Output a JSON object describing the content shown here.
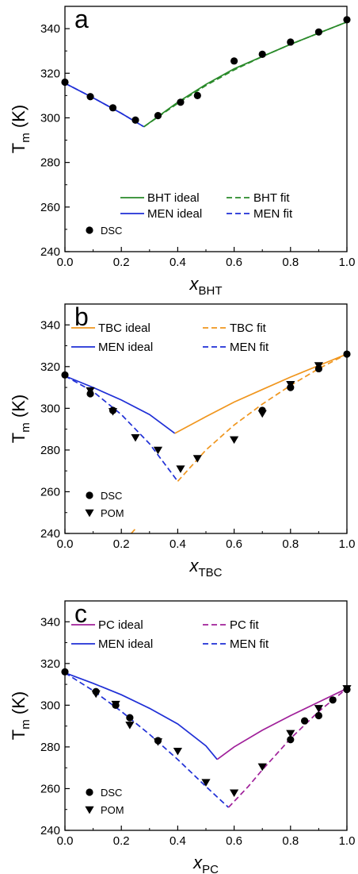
{
  "chart_data": [
    {
      "type": "line",
      "panel_label": "a",
      "xlabel_main": "x",
      "xlabel_sub": "BHT",
      "ylabel_main": "T",
      "ylabel_sub": "m",
      "ylabel_unit": "(K)",
      "xlim": [
        0,
        1.0
      ],
      "ylim": [
        240,
        350
      ],
      "xticks": [
        "0.0",
        "0.2",
        "0.4",
        "0.6",
        "0.8",
        "1.0"
      ],
      "yticks": [
        "240",
        "260",
        "280",
        "300",
        "320",
        "340"
      ],
      "legend_lines": [
        {
          "label": "BHT ideal",
          "color": "#2a8a2a",
          "dash": false
        },
        {
          "label": "BHT fit",
          "color": "#2a8a2a",
          "dash": true
        },
        {
          "label": "MEN ideal",
          "color": "#1f2fd6",
          "dash": false
        },
        {
          "label": "MEN fit",
          "color": "#1f2fd6",
          "dash": true
        }
      ],
      "legend_markers": [
        {
          "label": "DSC",
          "marker": "circle"
        }
      ],
      "series": [
        {
          "name": "MEN ideal",
          "color": "#1f2fd6",
          "dash": false,
          "x": [
            0,
            0.1,
            0.2,
            0.28
          ],
          "y": [
            315.5,
            309,
            302,
            296
          ]
        },
        {
          "name": "MEN fit",
          "color": "#1f2fd6",
          "dash": true,
          "x": [
            0,
            0.1,
            0.2,
            0.28
          ],
          "y": [
            315.5,
            309,
            302,
            296
          ]
        },
        {
          "name": "BHT ideal",
          "color": "#2a8a2a",
          "dash": false,
          "x": [
            0.28,
            0.4,
            0.5,
            0.6,
            0.7,
            0.8,
            0.9,
            1.0
          ],
          "y": [
            296,
            307,
            315,
            322,
            327.5,
            333,
            338,
            343
          ]
        },
        {
          "name": "BHT fit",
          "color": "#2a8a2a",
          "dash": true,
          "x": [
            0.28,
            0.4,
            0.5,
            0.6,
            0.7,
            0.8,
            0.9,
            1.0
          ],
          "y": [
            296,
            306.5,
            314.5,
            321.5,
            327.5,
            333,
            338,
            343
          ]
        }
      ],
      "points": [
        {
          "name": "DSC",
          "marker": "circle",
          "x": [
            0,
            0.09,
            0.17,
            0.25,
            0.33,
            0.41,
            0.47,
            0.6,
            0.7,
            0.8,
            0.9,
            1.0
          ],
          "y": [
            316,
            309.5,
            304.5,
            299,
            301,
            307,
            310,
            325.5,
            328.5,
            334,
            338.5,
            344
          ]
        }
      ]
    },
    {
      "type": "line",
      "panel_label": "b",
      "xlabel_main": "x",
      "xlabel_sub": "TBC",
      "ylabel_main": "T",
      "ylabel_sub": "m",
      "ylabel_unit": "(K)",
      "xlim": [
        0,
        1.0
      ],
      "ylim": [
        240,
        350
      ],
      "xticks": [
        "0.0",
        "0.2",
        "0.4",
        "0.6",
        "0.8",
        "1.0"
      ],
      "yticks": [
        "240",
        "260",
        "280",
        "300",
        "320",
        "340"
      ],
      "legend_lines": [
        {
          "label": "TBC ideal",
          "color": "#f0961e",
          "dash": false
        },
        {
          "label": "TBC fit",
          "color": "#f0961e",
          "dash": true
        },
        {
          "label": "MEN ideal",
          "color": "#1f2fd6",
          "dash": false
        },
        {
          "label": "MEN fit",
          "color": "#1f2fd6",
          "dash": true
        }
      ],
      "legend_markers": [
        {
          "label": "DSC",
          "marker": "circle"
        },
        {
          "label": "POM",
          "marker": "triangle"
        }
      ],
      "series": [
        {
          "name": "MEN ideal",
          "color": "#1f2fd6",
          "dash": false,
          "x": [
            0,
            0.1,
            0.2,
            0.3,
            0.39
          ],
          "y": [
            315.5,
            310,
            304,
            297,
            288
          ]
        },
        {
          "name": "MEN fit",
          "color": "#1f2fd6",
          "dash": true,
          "x": [
            0,
            0.1,
            0.2,
            0.3,
            0.4
          ],
          "y": [
            315.5,
            308,
            297,
            283,
            265
          ]
        },
        {
          "name": "TBC ideal",
          "color": "#f0961e",
          "dash": false,
          "x": [
            0.39,
            0.5,
            0.6,
            0.7,
            0.8,
            0.9,
            1.0
          ],
          "y": [
            288,
            296,
            303,
            309,
            315,
            320.5,
            326
          ]
        },
        {
          "name": "TBC fit",
          "color": "#f0961e",
          "dash": true,
          "x": [
            0.4,
            0.5,
            0.6,
            0.7,
            0.8,
            0.9,
            1.0
          ],
          "y": [
            265,
            280,
            292,
            302,
            311,
            319,
            326
          ]
        },
        {
          "name": "TBC fit low",
          "color": "#f0961e",
          "dash": true,
          "x": [
            0.235,
            0.255
          ],
          "y": [
            240,
            243
          ]
        }
      ],
      "points": [
        {
          "name": "DSC",
          "marker": "circle",
          "x": [
            0,
            0.09,
            0.17,
            0.7,
            0.8,
            0.9,
            1.0
          ],
          "y": [
            316,
            307,
            299,
            299,
            310,
            319,
            326
          ]
        },
        {
          "name": "POM",
          "marker": "triangle",
          "x": [
            0.09,
            0.17,
            0.25,
            0.33,
            0.41,
            0.47,
            0.6,
            0.7,
            0.8,
            0.9
          ],
          "y": [
            308.5,
            298.5,
            286,
            280,
            271,
            276,
            285,
            297.5,
            311.5,
            320.5
          ]
        }
      ]
    },
    {
      "type": "line",
      "panel_label": "c",
      "xlabel_main": "x",
      "xlabel_sub": "PC",
      "ylabel_main": "T",
      "ylabel_sub": "m",
      "ylabel_unit": "(K)",
      "xlim": [
        0,
        1.0
      ],
      "ylim": [
        240,
        350
      ],
      "xticks": [
        "0.0",
        "0.2",
        "0.4",
        "0.6",
        "0.8",
        "1.0"
      ],
      "yticks": [
        "240",
        "260",
        "280",
        "300",
        "320",
        "340"
      ],
      "legend_lines": [
        {
          "label": "PC ideal",
          "color": "#a0209a",
          "dash": false
        },
        {
          "label": "PC fit",
          "color": "#a0209a",
          "dash": true
        },
        {
          "label": "MEN ideal",
          "color": "#1f2fd6",
          "dash": false
        },
        {
          "label": "MEN fit",
          "color": "#1f2fd6",
          "dash": true
        }
      ],
      "legend_markers": [
        {
          "label": "DSC",
          "marker": "circle"
        },
        {
          "label": "POM",
          "marker": "triangle"
        }
      ],
      "series": [
        {
          "name": "MEN ideal",
          "color": "#1f2fd6",
          "dash": false,
          "x": [
            0,
            0.1,
            0.2,
            0.3,
            0.4,
            0.5,
            0.54
          ],
          "y": [
            315.5,
            310.5,
            305,
            298.5,
            291,
            280.5,
            274
          ]
        },
        {
          "name": "MEN fit",
          "color": "#1f2fd6",
          "dash": true,
          "x": [
            0,
            0.1,
            0.2,
            0.3,
            0.4,
            0.5,
            0.58
          ],
          "y": [
            315.5,
            307,
            297,
            286,
            274,
            261,
            251
          ]
        },
        {
          "name": "PC ideal",
          "color": "#a0209a",
          "dash": false,
          "x": [
            0.54,
            0.6,
            0.7,
            0.8,
            0.9,
            1.0
          ],
          "y": [
            274,
            280,
            288,
            295,
            301.5,
            308
          ]
        },
        {
          "name": "PC fit",
          "color": "#a0209a",
          "dash": true,
          "x": [
            0.58,
            0.65,
            0.7,
            0.8,
            0.9,
            1.0
          ],
          "y": [
            251,
            261,
            269,
            284,
            297,
            308
          ]
        }
      ],
      "points": [
        {
          "name": "DSC",
          "marker": "circle",
          "x": [
            0,
            0.11,
            0.18,
            0.23,
            0.33,
            0.8,
            0.85,
            0.9,
            0.95,
            1.0
          ],
          "y": [
            316,
            306.5,
            300,
            294,
            283,
            283.5,
            292.5,
            295,
            302.5,
            307.5
          ]
        },
        {
          "name": "POM",
          "marker": "triangle",
          "x": [
            0.11,
            0.18,
            0.23,
            0.33,
            0.4,
            0.5,
            0.6,
            0.7,
            0.8,
            0.9,
            1.0
          ],
          "y": [
            305.5,
            300.5,
            290.5,
            282.5,
            278,
            263,
            258,
            270.5,
            286.5,
            298.5,
            308
          ]
        }
      ]
    }
  ]
}
